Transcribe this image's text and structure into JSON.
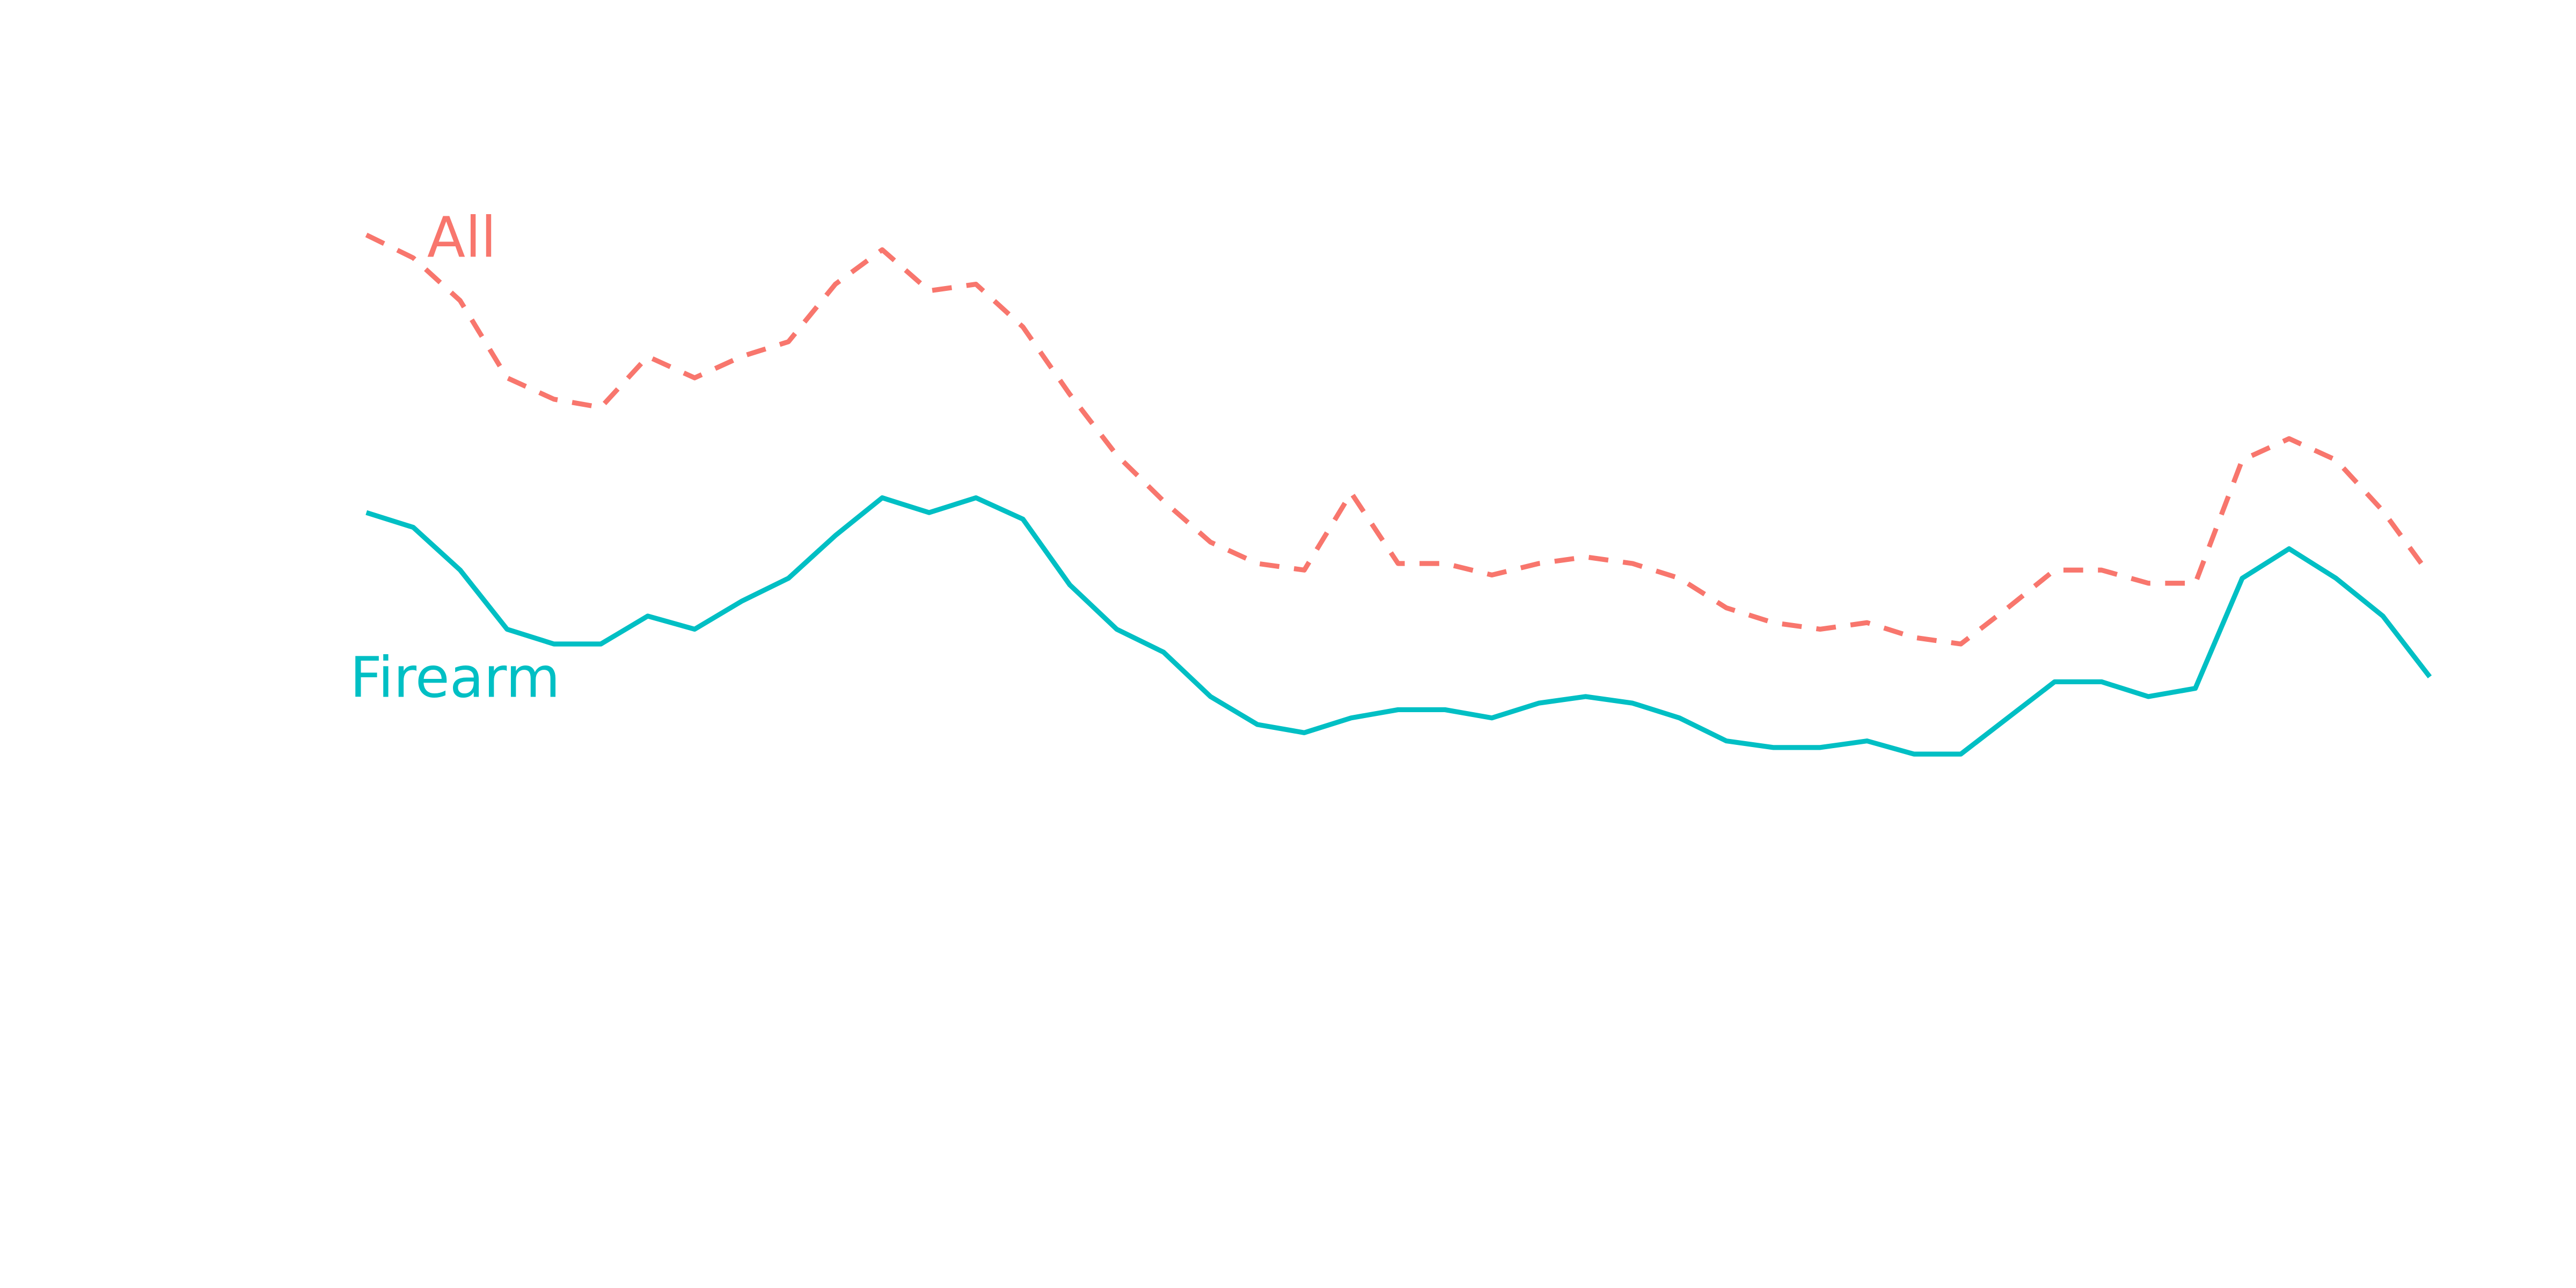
{
  "chart_data": {
    "type": "line",
    "series": [
      {
        "name": "All",
        "color": "#f8766d",
        "dashed": true,
        "values": [
          641,
          627,
          601,
          554,
          541,
          536,
          567,
          554,
          567,
          576,
          611,
          632,
          607,
          611,
          585,
          544,
          507,
          479,
          454,
          441,
          437,
          484,
          441,
          441,
          434,
          441,
          445,
          441,
          432,
          414,
          405,
          401,
          405,
          396,
          392,
          414,
          437,
          437,
          429,
          429,
          504,
          517,
          504,
          473,
          434
        ]
      },
      {
        "name": "Firearm",
        "color": "#00bfc4",
        "dashed": false,
        "values": [
          472,
          463,
          437,
          401,
          392,
          392,
          409,
          401,
          418,
          432,
          458,
          481,
          472,
          481,
          468,
          428,
          401,
          387,
          360,
          343,
          338,
          347,
          352,
          352,
          347,
          356,
          360,
          356,
          347,
          333,
          329,
          329,
          333,
          325,
          325,
          347,
          369,
          369,
          360,
          365,
          432,
          450,
          432,
          409,
          372
        ]
      }
    ]
  }
}
